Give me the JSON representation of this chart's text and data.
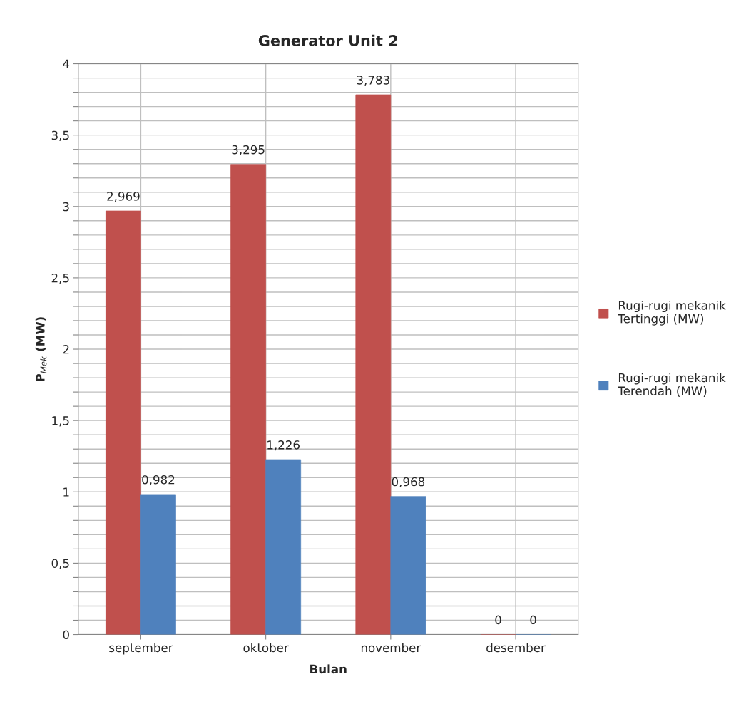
{
  "chart_data": {
    "type": "bar",
    "title": "Generator Unit 2",
    "xlabel": "Bulan",
    "ylabel": "P$_{Mek}$ (MW)",
    "categories": [
      "september",
      "oktober",
      "november",
      "desember"
    ],
    "series": [
      {
        "name": "Rugi-rugi mekanik Tertinggi (MW)",
        "color": "#c0504d",
        "values": [
          2.969,
          3.295,
          3.783,
          0
        ],
        "value_labels": [
          "2,969",
          "3,295",
          "3,783",
          "0"
        ]
      },
      {
        "name": "Rugi-rugi mekanik Terendah (MW)",
        "color": "#4f81bd",
        "values": [
          0.982,
          1.226,
          0.968,
          0
        ],
        "value_labels": [
          "0,982",
          "1,226",
          "0,968",
          "0"
        ]
      }
    ],
    "ylim": [
      0,
      4
    ],
    "yticks": [
      0,
      {
        "value": 0.1,
        "label": null
      },
      {
        "value": 0.2,
        "label": null
      },
      {
        "value": 0.3,
        "label": null
      },
      {
        "value": 0.4,
        "label": null
      },
      {
        "value": 0.5,
        "label": "0,5"
      },
      {
        "value": 0.6,
        "label": null
      },
      {
        "value": 0.7,
        "label": null
      },
      {
        "value": 0.8,
        "label": null
      },
      {
        "value": 0.9,
        "label": null
      },
      1,
      {
        "value": 1.1,
        "label": null
      },
      {
        "value": 1.2,
        "label": null
      },
      {
        "value": 1.3,
        "label": null
      },
      {
        "value": 1.4,
        "label": null
      },
      {
        "value": 1.5,
        "label": "1,5"
      },
      {
        "value": 1.6,
        "label": null
      },
      {
        "value": 1.7,
        "label": null
      },
      {
        "value": 1.8,
        "label": null
      },
      {
        "value": 1.9,
        "label": null
      },
      2,
      {
        "value": 2.1,
        "label": null
      },
      {
        "value": 2.2,
        "label": null
      },
      {
        "value": 2.3,
        "label": null
      },
      {
        "value": 2.4,
        "label": null
      },
      {
        "value": 2.5,
        "label": "2,5"
      },
      {
        "value": 2.6,
        "label": null
      },
      {
        "value": 2.7,
        "label": null
      },
      {
        "value": 2.8,
        "label": null
      },
      {
        "value": 2.9,
        "label": null
      },
      3,
      {
        "value": 3.1,
        "label": null
      },
      {
        "value": 3.2,
        "label": null
      },
      {
        "value": 3.3,
        "label": null
      },
      {
        "value": 3.4,
        "label": null
      },
      {
        "value": 3.5,
        "label": "3,5"
      },
      {
        "value": 3.6,
        "label": null
      },
      {
        "value": 3.7,
        "label": null
      },
      {
        "value": 3.8,
        "label": null
      },
      {
        "value": 3.9,
        "label": null
      },
      4
    ],
    "grid": true,
    "legend": "right"
  }
}
